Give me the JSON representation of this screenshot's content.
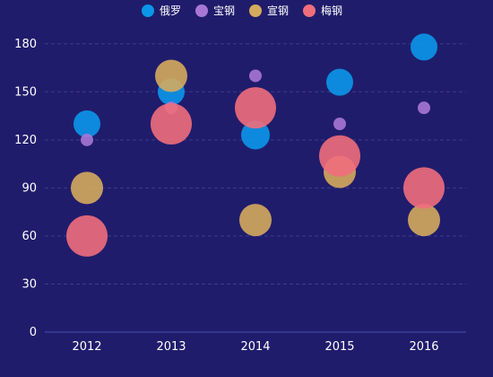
{
  "chart_data": {
    "type": "scatter",
    "bubble": true,
    "categories": [
      "2012",
      "2013",
      "2014",
      "2015",
      "2016"
    ],
    "ylim": [
      0,
      195
    ],
    "yticks": [
      0,
      30,
      60,
      90,
      120,
      150,
      180
    ],
    "grid": "horizontal-dashed",
    "legend_position": "top-center",
    "background": "#201c6c",
    "series": [
      {
        "name": "俄罗",
        "color": "#0b97ea",
        "points": [
          {
            "x": "2012",
            "y": 130,
            "size": 30
          },
          {
            "x": "2013",
            "y": 150,
            "size": 30
          },
          {
            "x": "2014",
            "y": 123,
            "size": 32
          },
          {
            "x": "2015",
            "y": 156,
            "size": 30
          },
          {
            "x": "2016",
            "y": 178,
            "size": 30
          }
        ]
      },
      {
        "name": "宝钢",
        "color": "#a877d6",
        "points": [
          {
            "x": "2012",
            "y": 120,
            "size": 14
          },
          {
            "x": "2013",
            "y": 140,
            "size": 14
          },
          {
            "x": "2014",
            "y": 160,
            "size": 14
          },
          {
            "x": "2015",
            "y": 130,
            "size": 14
          },
          {
            "x": "2016",
            "y": 140,
            "size": 14
          }
        ]
      },
      {
        "name": "宣钢",
        "color": "#d4aa5e",
        "points": [
          {
            "x": "2012",
            "y": 90,
            "size": 36
          },
          {
            "x": "2013",
            "y": 160,
            "size": 36
          },
          {
            "x": "2014",
            "y": 70,
            "size": 36
          },
          {
            "x": "2015",
            "y": 100,
            "size": 36
          },
          {
            "x": "2016",
            "y": 70,
            "size": 36
          }
        ]
      },
      {
        "name": "梅钢",
        "color": "#f06e7c",
        "points": [
          {
            "x": "2012",
            "y": 60,
            "size": 46
          },
          {
            "x": "2013",
            "y": 130,
            "size": 46
          },
          {
            "x": "2014",
            "y": 140,
            "size": 46
          },
          {
            "x": "2015",
            "y": 110,
            "size": 46
          },
          {
            "x": "2016",
            "y": 90,
            "size": 46
          }
        ]
      }
    ]
  }
}
